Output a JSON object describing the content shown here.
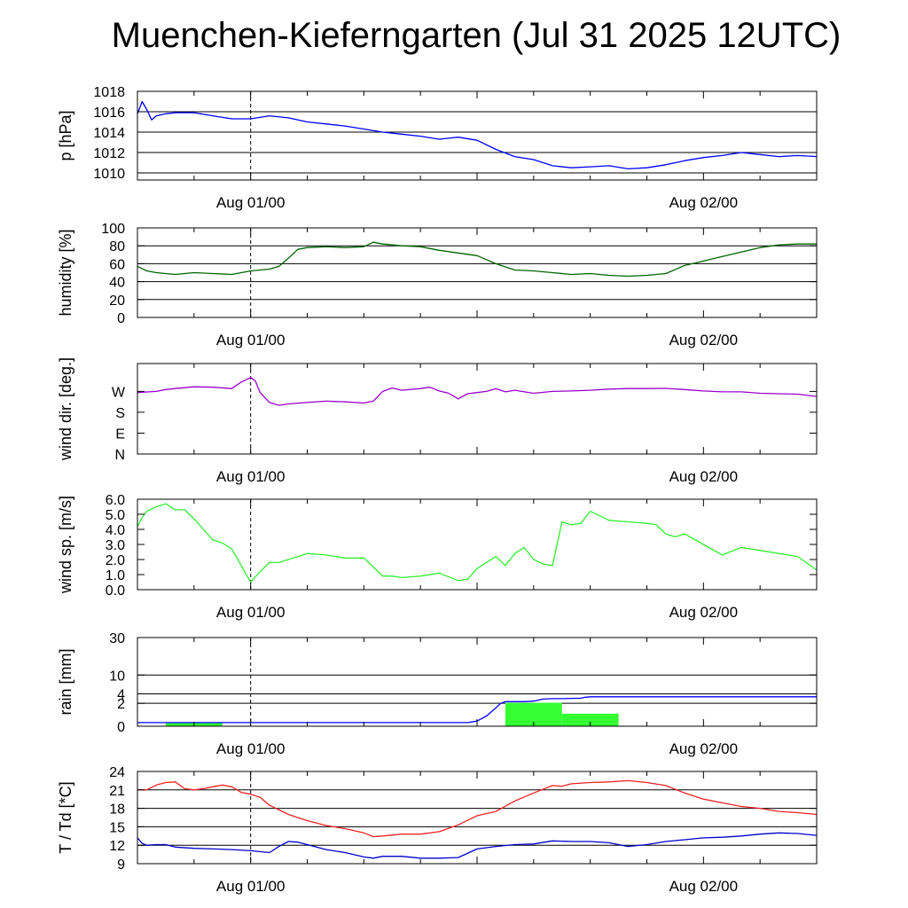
{
  "title": "Muenchen-Kieferngarten (Jul 31 2025 12UTC)",
  "colors": {
    "pressure": "#0000ff",
    "humidity": "#006400",
    "wind_dir": "#9900cc",
    "wind_speed": "#33ee33",
    "rain_bars": "#33ff33",
    "rain_total": "#0000ff",
    "temperature": "#ee2222",
    "dewpoint": "#0000cc"
  },
  "chart_data": [
    {
      "type": "line",
      "ylabel": "p [hPa]",
      "xticks": [
        "Aug 01/00",
        "Aug 02/00"
      ],
      "ylim": [
        1009.3,
        1018
      ],
      "yticks": [
        1010,
        1012,
        1014,
        1016,
        1018
      ],
      "ytick_labels": [
        "1010",
        "1012",
        "1014",
        "1016",
        "1018"
      ],
      "grid": true,
      "series": [
        {
          "x": [
            0,
            0.5,
            1,
            1.5,
            2,
            3,
            4,
            6,
            8,
            10,
            12,
            14,
            16,
            18,
            20,
            22,
            24,
            26,
            28,
            30,
            32,
            34,
            36,
            38,
            40,
            42,
            44,
            46,
            48,
            50,
            52,
            54,
            56,
            58,
            60,
            62,
            64,
            66,
            68,
            70,
            72
          ],
          "values": [
            1015.8,
            1017,
            1016.2,
            1015.2,
            1015.6,
            1015.8,
            1015.9,
            1015.9,
            1015.6,
            1015.3,
            1015.3,
            1015.6,
            1015.4,
            1015.0,
            1014.8,
            1014.6,
            1014.3,
            1014.0,
            1013.8,
            1013.6,
            1013.3,
            1013.5,
            1013.2,
            1012.3,
            1011.6,
            1011.3,
            1010.7,
            1010.5,
            1010.6,
            1010.7,
            1010.4,
            1010.5,
            1010.8,
            1011.2,
            1011.5,
            1011.7,
            1012.0,
            1011.8,
            1011.6,
            1011.7,
            1011.6
          ]
        }
      ]
    },
    {
      "type": "line",
      "ylabel": "humidity [%]",
      "xticks": [
        "Aug 01/00",
        "Aug 02/00"
      ],
      "ylim": [
        0,
        100
      ],
      "yticks": [
        0,
        20,
        40,
        60,
        80,
        100
      ],
      "ytick_labels": [
        "0",
        "20",
        "40",
        "60",
        "80",
        "100"
      ],
      "grid": true,
      "series": [
        {
          "x": [
            0,
            1,
            2,
            3,
            4,
            6,
            8,
            10,
            12,
            14,
            15,
            16,
            17,
            18,
            20,
            22,
            24,
            25,
            26,
            28,
            30,
            32,
            34,
            36,
            38,
            40,
            42,
            44,
            46,
            48,
            50,
            52,
            54,
            56,
            58,
            60,
            62,
            64,
            66,
            68,
            70,
            72
          ],
          "values": [
            57,
            52,
            50,
            49,
            48,
            50,
            49,
            48,
            52,
            54,
            57,
            66,
            76,
            78,
            79,
            78,
            79,
            84,
            82,
            80,
            79,
            75,
            72,
            69,
            60,
            53,
            52,
            50,
            48,
            49,
            47,
            46,
            47,
            49,
            58,
            63,
            68,
            73,
            78,
            81,
            82,
            82
          ]
        }
      ]
    },
    {
      "type": "line",
      "ylabel": "wind dir. [deg.]",
      "xticks": [
        "Aug 01/00",
        "Aug 02/00"
      ],
      "ylim": [
        0,
        390
      ],
      "yticks": [
        0,
        90,
        180,
        270
      ],
      "ytick_labels": [
        "N",
        "E",
        "S",
        "W"
      ],
      "grid": false,
      "series": [
        {
          "x": [
            0,
            2,
            3,
            4,
            6,
            8,
            10,
            11,
            12,
            12.5,
            13,
            14,
            15,
            16,
            18,
            20,
            22,
            24,
            25,
            26,
            27,
            28,
            30,
            31,
            32,
            33,
            34,
            35,
            36,
            37,
            38,
            39,
            40,
            42,
            44,
            46,
            48,
            50,
            52,
            54,
            56,
            58,
            60,
            62,
            64,
            66,
            68,
            70,
            72
          ],
          "values": [
            265,
            270,
            278,
            282,
            290,
            288,
            282,
            310,
            330,
            315,
            265,
            222,
            210,
            216,
            222,
            228,
            225,
            220,
            228,
            270,
            285,
            275,
            282,
            288,
            272,
            262,
            238,
            260,
            265,
            270,
            282,
            268,
            275,
            262,
            270,
            272,
            275,
            280,
            282,
            282,
            283,
            278,
            272,
            268,
            268,
            262,
            260,
            258,
            248
          ]
        }
      ]
    },
    {
      "type": "line",
      "ylabel": "wind sp. [m/s]",
      "xticks": [
        "Aug 01/00",
        "Aug 02/00"
      ],
      "ylim": [
        0,
        6.0
      ],
      "yticks": [
        0,
        1,
        2,
        3,
        4,
        5,
        6
      ],
      "ytick_labels": [
        "0.0",
        "1.0",
        "2.0",
        "3.0",
        "4.0",
        "5.0",
        "6.0"
      ],
      "grid": false,
      "series": [
        {
          "x": [
            0,
            0.5,
            1,
            2,
            3,
            4,
            5,
            6,
            7,
            8,
            9,
            10,
            11,
            12,
            13,
            14,
            15,
            16,
            17,
            18,
            20,
            22,
            24,
            25,
            26,
            27,
            28,
            30,
            32,
            34,
            35,
            36,
            37,
            38,
            39,
            40,
            41,
            42,
            43,
            44,
            45,
            46,
            47,
            48,
            50,
            52,
            54,
            55,
            56,
            57,
            58,
            60,
            62,
            64,
            66,
            68,
            70,
            72
          ],
          "values": [
            4.2,
            4.8,
            5.2,
            5.5,
            5.7,
            5.3,
            5.3,
            4.7,
            4.0,
            3.3,
            3.1,
            2.7,
            1.6,
            0.5,
            1.2,
            1.8,
            1.8,
            2.0,
            2.2,
            2.4,
            2.3,
            2.1,
            2.1,
            1.5,
            0.9,
            0.9,
            0.8,
            0.9,
            1.1,
            0.6,
            0.7,
            1.4,
            1.8,
            2.2,
            1.6,
            2.4,
            2.8,
            2.0,
            1.7,
            1.6,
            4.5,
            4.3,
            4.4,
            5.2,
            4.6,
            4.5,
            4.4,
            4.3,
            3.7,
            3.5,
            3.7,
            3.0,
            2.3,
            2.8,
            2.6,
            2.4,
            2.2,
            1.3
          ]
        }
      ]
    },
    {
      "type": "bar+line",
      "ylabel": "rain [mm]",
      "xticks": [
        "Aug 01/00",
        "Aug 02/00"
      ],
      "scale": "sqrt",
      "ylim": [
        0,
        30
      ],
      "yticks": [
        0,
        2,
        4,
        10,
        30
      ],
      "ytick_labels": [
        "0",
        "2",
        "4",
        "10",
        "30"
      ],
      "grid": true,
      "bars": [
        {
          "x0": 3,
          "x1": 9,
          "value": 0.05
        },
        {
          "x0": 39,
          "x1": 45,
          "value": 2.1
        },
        {
          "x0": 45,
          "x1": 51,
          "value": 0.6
        }
      ],
      "series": [
        {
          "x": [
            0,
            35,
            36,
            37,
            38,
            38.5,
            39,
            40,
            41,
            42,
            43,
            44,
            45,
            46,
            47,
            47.5,
            48,
            50,
            55,
            60,
            65,
            72
          ],
          "values": [
            0.05,
            0.05,
            0.1,
            0.4,
            1.3,
            2.0,
            2.3,
            2.3,
            2.3,
            2.4,
            2.8,
            2.9,
            2.9,
            2.95,
            3.0,
            3.2,
            3.3,
            3.3,
            3.3,
            3.3,
            3.3,
            3.3
          ]
        }
      ]
    },
    {
      "type": "line",
      "ylabel": "T / Td [*C]",
      "xticks": [
        "Aug 01/00",
        "Aug 02/00"
      ],
      "ylim": [
        9,
        24
      ],
      "yticks": [
        9,
        12,
        15,
        18,
        21,
        24
      ],
      "ytick_labels": [
        "9",
        "12",
        "15",
        "18",
        "21",
        "24"
      ],
      "grid": true,
      "series": [
        {
          "x": [
            0,
            1,
            2,
            3,
            4,
            5,
            6,
            7,
            8,
            9,
            10,
            11,
            12,
            13,
            14,
            16,
            18,
            20,
            22,
            24,
            25,
            26,
            28,
            30,
            32,
            34,
            36,
            38,
            40,
            42,
            44,
            45,
            46,
            48,
            50,
            52,
            54,
            56,
            58,
            60,
            62,
            64,
            66,
            68,
            70,
            72
          ],
          "values": [
            21.0,
            21.0,
            21.8,
            22.2,
            22.3,
            21.2,
            21.0,
            21.2,
            21.5,
            21.8,
            21.5,
            20.6,
            20.3,
            19.8,
            18.5,
            17.0,
            16.0,
            15.2,
            14.7,
            14.0,
            13.4,
            13.5,
            13.8,
            13.8,
            14.2,
            15.3,
            16.8,
            17.5,
            19.2,
            20.5,
            21.7,
            21.6,
            22.0,
            22.2,
            22.3,
            22.5,
            22.2,
            21.7,
            20.5,
            19.5,
            18.9,
            18.3,
            18.0,
            17.5,
            17.3,
            17.0
          ]
        },
        {
          "x": [
            0,
            0.5,
            1,
            2,
            3,
            4,
            6,
            8,
            10,
            12,
            14,
            15,
            16,
            17,
            18,
            20,
            22,
            24,
            25,
            26,
            28,
            30,
            32,
            34,
            36,
            38,
            40,
            42,
            44,
            46,
            48,
            50,
            52,
            54,
            56,
            58,
            60,
            62,
            64,
            66,
            68,
            70,
            72
          ],
          "values": [
            13.2,
            12.3,
            12.0,
            12.1,
            12.1,
            11.7,
            11.5,
            11.4,
            11.3,
            11.1,
            10.8,
            11.8,
            12.6,
            12.5,
            12.1,
            11.3,
            10.8,
            10.1,
            9.9,
            10.2,
            10.2,
            9.9,
            9.9,
            10.0,
            11.4,
            11.8,
            12.1,
            12.2,
            12.7,
            12.6,
            12.6,
            12.4,
            11.8,
            12.1,
            12.6,
            12.9,
            13.2,
            13.3,
            13.5,
            13.8,
            14.0,
            13.9,
            13.6
          ]
        }
      ]
    }
  ]
}
